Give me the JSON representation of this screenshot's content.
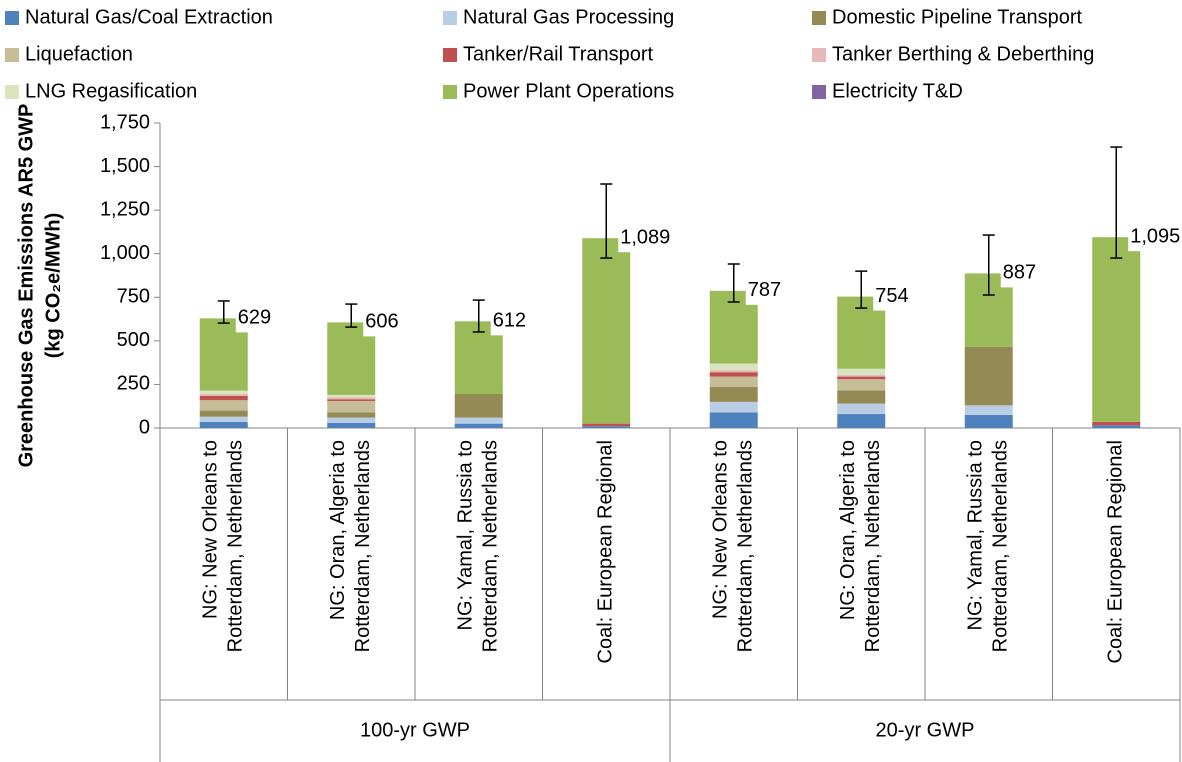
{
  "chart_data": {
    "type": "stacked_bar",
    "ylabel": [
      "Greenhouse Gas Emissions AR5 GWP",
      "(kg CO₂e/MWh)"
    ],
    "categories": [
      "NG: New Orleans to Rotterdam, Netherlands",
      "NG: Oran, Algeria to Rotterdam, Netherlands",
      "NG: Yamal, Russia to Rotterdam, Netherlands",
      "Coal: European Regional",
      "NG: New Orleans to Rotterdam, Netherlands",
      "NG: Oran, Algeria to Rotterdam, Netherlands",
      "NG: Yamal, Russia to Rotterdam, Netherlands",
      "Coal: European Regional"
    ],
    "groups": [
      {
        "label": "100-yr GWP",
        "size": 4
      },
      {
        "label": "20-yr GWP",
        "size": 4
      }
    ],
    "series": [
      {
        "name": "Natural Gas/Coal Extraction",
        "color": "#4f81bd",
        "values": [
          35,
          30,
          25,
          10,
          90,
          80,
          75,
          15
        ]
      },
      {
        "name": "Natural Gas Processing",
        "color": "#b9cde5",
        "values": [
          30,
          30,
          35,
          0,
          60,
          60,
          55,
          0
        ]
      },
      {
        "name": "Domestic Pipeline Transport",
        "color": "#948a54",
        "values": [
          35,
          30,
          135,
          0,
          85,
          75,
          335,
          0
        ]
      },
      {
        "name": "Liquefaction",
        "color": "#c4bd97",
        "values": [
          60,
          65,
          0,
          0,
          60,
          65,
          0,
          0
        ]
      },
      {
        "name": "Tanker/Rail Transport",
        "color": "#c0504d",
        "values": [
          25,
          10,
          0,
          15,
          25,
          15,
          0,
          20
        ]
      },
      {
        "name": "Tanker Berthing & Deberthing",
        "color": "#e6b9b8",
        "values": [
          10,
          10,
          0,
          0,
          10,
          10,
          0,
          0
        ]
      },
      {
        "name": "LNG Regasification",
        "color": "#d7e4bd",
        "values": [
          20,
          15,
          0,
          0,
          40,
          35,
          0,
          0
        ]
      },
      {
        "name": "Power Plant Operations",
        "color": "#9bbb59",
        "values": [
          414,
          416,
          417,
          1064,
          417,
          414,
          422,
          1060
        ]
      },
      {
        "name": "Electricity T&D",
        "color": "#8064a2",
        "values": [
          0,
          0,
          0,
          0,
          0,
          0,
          0,
          0
        ]
      }
    ],
    "totals": [
      629,
      606,
      612,
      1089,
      787,
      754,
      887,
      1095
    ],
    "value_labels": [
      "629",
      "606",
      "612",
      "1,089",
      "787",
      "754",
      "887",
      "1,095"
    ],
    "error_minus": [
      27,
      27,
      61,
      114,
      64,
      66,
      124,
      120
    ],
    "error_plus": [
      100,
      105,
      122,
      311,
      154,
      146,
      220,
      517
    ],
    "ylim": [
      0,
      1750
    ],
    "yticks": [
      0,
      250,
      500,
      750,
      {
        "value": 1000,
        "label": "1,000"
      },
      {
        "value": 1250,
        "label": "1,250"
      },
      {
        "value": 1500,
        "label": "1,500"
      },
      {
        "value": 1750,
        "label": "1,750"
      }
    ],
    "legend": "top"
  }
}
